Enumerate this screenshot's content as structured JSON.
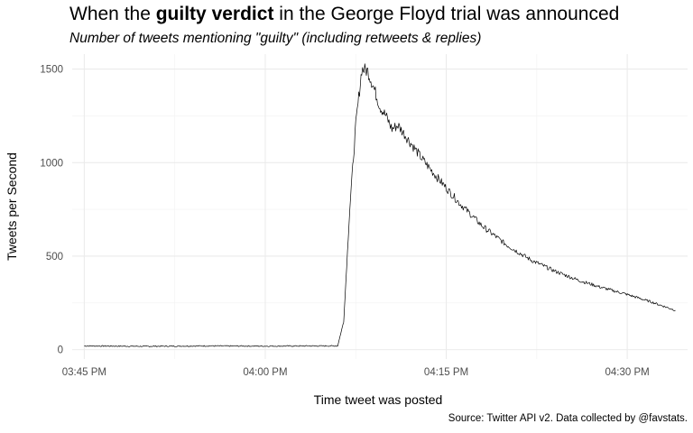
{
  "title": {
    "prefix": "When the ",
    "bold": "guilty verdict",
    "suffix": " in the George Floyd trial was announced"
  },
  "subtitle": "Number of tweets mentioning \"guilty\" (including retweets & replies)",
  "caption": "Source: Twitter API v2. Data collected by @favstats.",
  "chart_data": {
    "type": "line",
    "title": "When the guilty verdict in the George Floyd trial was announced",
    "subtitle": "Number of tweets mentioning \"guilty\" (including retweets & replies)",
    "xlabel": "Time tweet was posted",
    "ylabel": "Tweets per Second",
    "x_ticks": [
      "03:45 PM",
      "04:00 PM",
      "04:15 PM",
      "04:30 PM"
    ],
    "y_ticks": [
      0,
      500,
      1000,
      1500
    ],
    "ylim": [
      -50,
      1580
    ],
    "xlim": [
      "03:44 PM",
      "04:35 PM"
    ],
    "grid": true,
    "legend": "none",
    "line_color": "#000000",
    "series": [
      {
        "x": [
          "03:45 PM",
          "03:50 PM",
          "03:55 PM",
          "04:00 PM",
          "04:04 PM",
          "04:06 PM",
          "04:06:30 PM",
          "04:07 PM",
          "04:07:30 PM",
          "04:08 PM",
          "04:08:30 PM",
          "04:09 PM",
          "04:09:30 PM",
          "04:10 PM",
          "04:10:30 PM",
          "04:11 PM",
          "04:12 PM",
          "04:13 PM",
          "04:14 PM",
          "04:15 PM",
          "04:16 PM",
          "04:18 PM",
          "04:20 PM",
          "04:22 PM",
          "04:24 PM",
          "04:26 PM",
          "04:28 PM",
          "04:30 PM",
          "04:32 PM",
          "04:34 PM"
        ],
        "values": [
          20,
          18,
          20,
          19,
          20,
          20,
          150,
          750,
          1200,
          1500,
          1490,
          1400,
          1300,
          1250,
          1180,
          1200,
          1110,
          1020,
          940,
          865,
          790,
          660,
          560,
          480,
          420,
          370,
          330,
          295,
          255,
          210
        ]
      }
    ]
  }
}
